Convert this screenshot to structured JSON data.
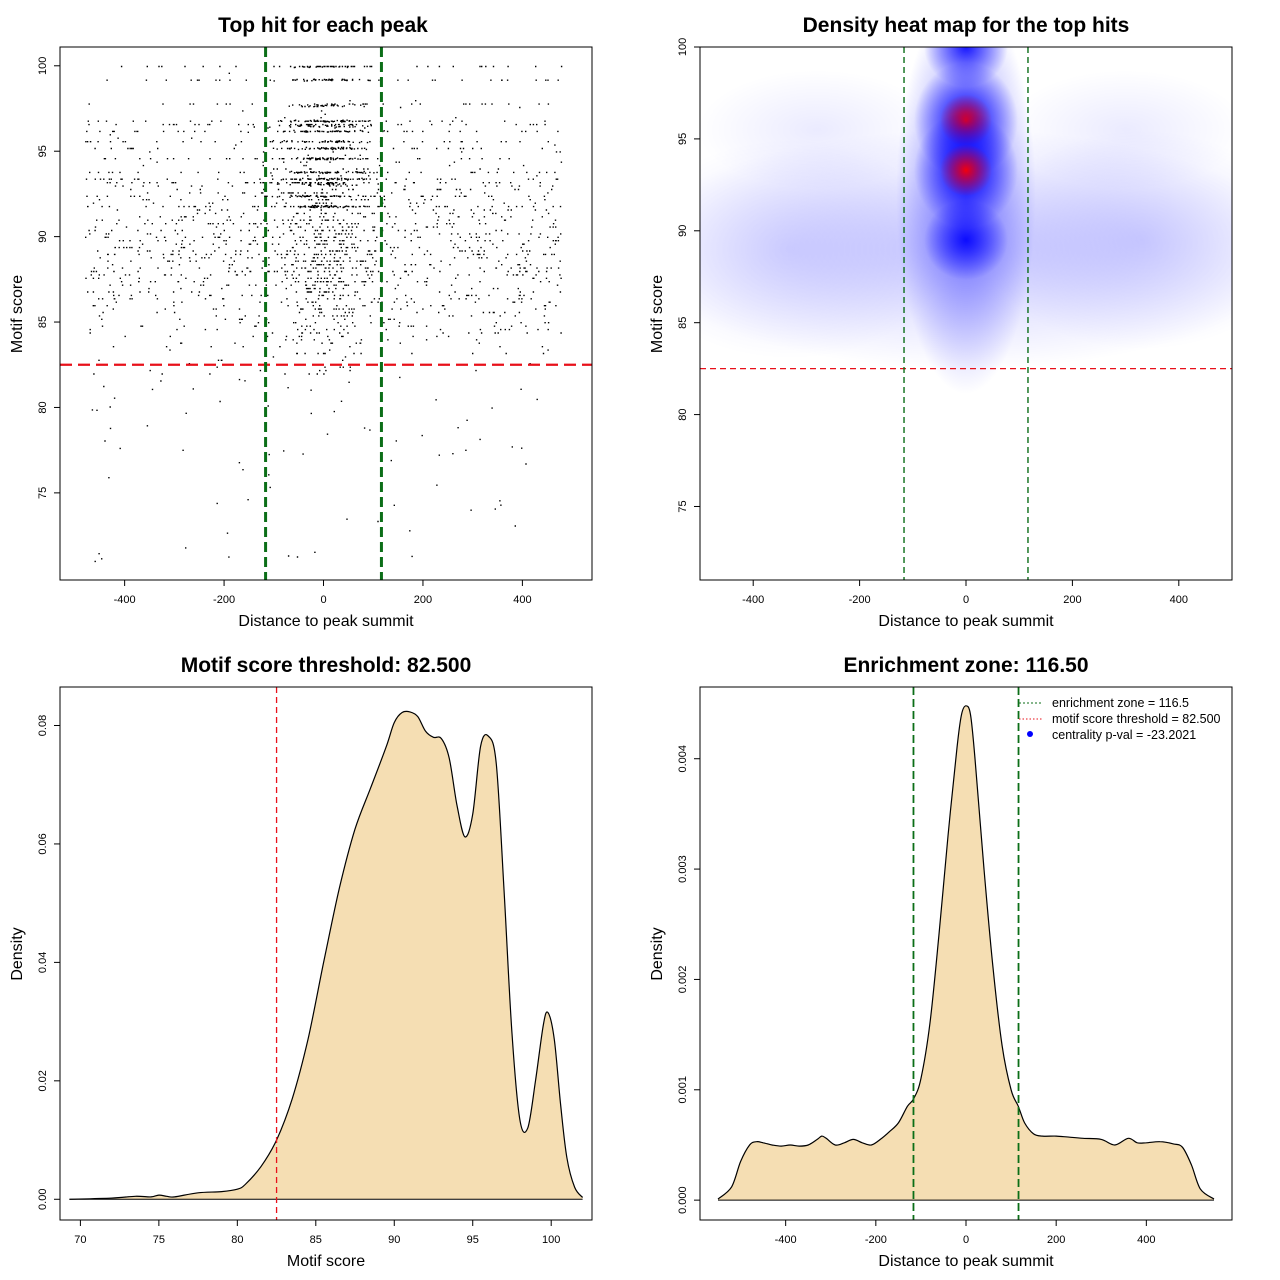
{
  "colors": {
    "threshold_line": "#e8101a",
    "zone_line": "#0b6e17",
    "density_fill": "#f5deb3",
    "heat_low": "#ffffff",
    "heat_mid": "#0000ff",
    "heat_high": "#ff0000",
    "point": "#000000",
    "legend_point": "#0000ff"
  },
  "chart_data": [
    {
      "id": "scatter",
      "type": "scatter",
      "title": "Top hit for each peak",
      "xlabel": "Distance to peak summit",
      "ylabel": "Motif score",
      "xlim": [
        -530,
        540
      ],
      "ylim": [
        69.9,
        101.1
      ],
      "xticks": [
        -400,
        -200,
        0,
        200,
        400
      ],
      "xtick_labels": [
        "-400",
        "-200",
        "0",
        "200",
        "400"
      ],
      "yticks": [
        75,
        80,
        85,
        90,
        95,
        100
      ],
      "ytick_labels": [
        "75",
        "80",
        "85",
        "90",
        "95",
        "100"
      ],
      "threshold": 82.5,
      "zone": [
        -116.5,
        116.5
      ],
      "score_levels": [
        100,
        99.2,
        97.7,
        96.8,
        96.5,
        96.2,
        95.6,
        95.2,
        94.6,
        93.8,
        93.4,
        93.1,
        92.4,
        91.8
      ],
      "central_peaks": [
        96,
        93.5,
        100
      ],
      "n_points_approx": 5200
    },
    {
      "id": "heatmap",
      "type": "heatmap",
      "title": "Density heat map for the top hits",
      "xlabel": "Distance to peak summit",
      "ylabel": "Motif score",
      "xlim": [
        -500,
        500
      ],
      "ylim": [
        71,
        100
      ],
      "xticks": [
        -400,
        -200,
        0,
        200,
        400
      ],
      "xtick_labels": [
        "-400",
        "-200",
        "0",
        "200",
        "400"
      ],
      "yticks": [
        75,
        80,
        85,
        90,
        95,
        100
      ],
      "ytick_labels": [
        "75",
        "80",
        "85",
        "90",
        "95",
        "100"
      ],
      "threshold": 82.5,
      "zone": [
        -116.5,
        116.5
      ],
      "hotspots": [
        {
          "x": 0,
          "y": 96,
          "level": "high"
        },
        {
          "x": 0,
          "y": 93.3,
          "level": "high"
        },
        {
          "x": 0,
          "y": 100,
          "level": "mid"
        },
        {
          "x": 0,
          "y": 89.5,
          "level": "mid"
        }
      ]
    },
    {
      "id": "score-density",
      "type": "area",
      "title": "Motif score threshold: 82.500",
      "xlabel": "Motif score",
      "ylabel": "Density",
      "xlim": [
        68.7,
        102.6
      ],
      "ylim": [
        -0.0035,
        0.0865
      ],
      "xticks": [
        70,
        75,
        80,
        85,
        90,
        95,
        100
      ],
      "xtick_labels": [
        "70",
        "75",
        "80",
        "85",
        "90",
        "95",
        "100"
      ],
      "yticks": [
        0,
        0.02,
        0.04,
        0.06,
        0.08
      ],
      "ytick_labels": [
        "0.00",
        "0.02",
        "0.04",
        "0.06",
        "0.08"
      ],
      "threshold": 82.5,
      "x": [
        69.3,
        72,
        73.5,
        74.5,
        75,
        75.5,
        76,
        77.5,
        79,
        80,
        80.5,
        81.5,
        82.5,
        83.5,
        84.5,
        85.5,
        86.5,
        87.5,
        88.5,
        89.5,
        90,
        90.5,
        91,
        91.5,
        92,
        92.5,
        93,
        93.5,
        94,
        94.5,
        95,
        95.5,
        96,
        96.5,
        97,
        97.5,
        98,
        98.5,
        99,
        99.5,
        99.8,
        100.2,
        100.6,
        101,
        101.5,
        102
      ],
      "y": [
        0,
        0.0002,
        0.0005,
        0.0004,
        0.0007,
        0.0005,
        0.0004,
        0.0011,
        0.0013,
        0.0017,
        0.0025,
        0.0055,
        0.01,
        0.017,
        0.027,
        0.04,
        0.0525,
        0.0625,
        0.0695,
        0.0765,
        0.0805,
        0.0822,
        0.0823,
        0.0815,
        0.079,
        0.078,
        0.0778,
        0.0745,
        0.0665,
        0.0612,
        0.065,
        0.0765,
        0.0782,
        0.0735,
        0.052,
        0.028,
        0.0135,
        0.012,
        0.02,
        0.0295,
        0.0315,
        0.027,
        0.016,
        0.007,
        0.002,
        0.0003
      ]
    },
    {
      "id": "distance-density",
      "type": "area",
      "title": "Enrichment zone: 116.50",
      "xlabel": "Distance to peak summit",
      "ylabel": "Density",
      "xlim": [
        -590,
        590
      ],
      "ylim": [
        -0.00018,
        0.00465
      ],
      "xticks": [
        -400,
        -200,
        0,
        200,
        400
      ],
      "xtick_labels": [
        "-400",
        "-200",
        "0",
        "200",
        "400"
      ],
      "yticks": [
        0,
        0.001,
        0.002,
        0.003,
        0.004
      ],
      "ytick_labels": [
        "0.000",
        "0.001",
        "0.002",
        "0.003",
        "0.004"
      ],
      "zone": [
        -116.5,
        116.5
      ],
      "x": [
        -550,
        -520,
        -500,
        -480,
        -465,
        -450,
        -430,
        -410,
        -390,
        -370,
        -350,
        -330,
        -320,
        -310,
        -290,
        -270,
        -250,
        -230,
        -210,
        -190,
        -170,
        -150,
        -130,
        -116,
        -100,
        -80,
        -60,
        -40,
        -20,
        -10,
        0,
        10,
        20,
        40,
        60,
        80,
        100,
        116,
        130,
        150,
        170,
        200,
        230,
        260,
        300,
        330,
        360,
        380,
        400,
        430,
        460,
        480,
        500,
        520,
        550
      ],
      "y": [
        1e-05,
        0.00012,
        0.00035,
        0.0005,
        0.00053,
        0.00052,
        0.0005,
        0.00049,
        0.0005,
        0.00049,
        0.0005,
        0.00055,
        0.00058,
        0.00056,
        0.0005,
        0.00052,
        0.00055,
        0.00052,
        0.0005,
        0.00055,
        0.00062,
        0.0007,
        0.00085,
        0.00092,
        0.0011,
        0.0016,
        0.0024,
        0.0033,
        0.0041,
        0.0044,
        0.00448,
        0.0044,
        0.004,
        0.003,
        0.0021,
        0.0014,
        0.001,
        0.00085,
        0.0007,
        0.0006,
        0.00058,
        0.00058,
        0.00057,
        0.00056,
        0.00055,
        0.0005,
        0.00056,
        0.00052,
        0.00052,
        0.00053,
        0.00051,
        0.00048,
        0.00032,
        0.0001,
        1e-05
      ],
      "legend": [
        {
          "label": "enrichment zone = 116.5",
          "style": "dashed-green"
        },
        {
          "label": "motif score threshold = 82.500",
          "style": "dotted-red"
        },
        {
          "label": "centrality p-val = -23.2021",
          "style": "blue-dot"
        }
      ]
    }
  ]
}
